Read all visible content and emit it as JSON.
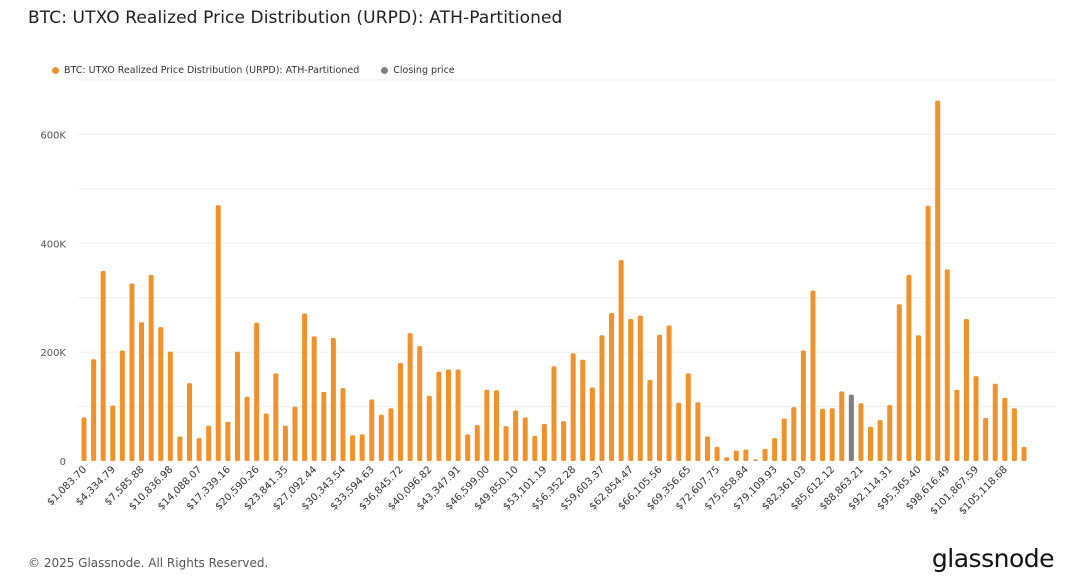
{
  "colors": {
    "series": "#F0922B",
    "closing": "#808080",
    "grid": "#eeeeee"
  },
  "chart_data": {
    "type": "bar",
    "title": "BTC: UTXO Realized Price Distribution (URPD): ATH-Partitioned",
    "legend": [
      "BTC: UTXO Realized Price Distribution (URPD): ATH-Partitioned",
      "Closing price"
    ],
    "legend_position": "top-left",
    "ylim": [
      0,
      700000
    ],
    "yticks": [
      0,
      200000,
      400000,
      600000
    ],
    "ytick_labels": [
      "0",
      "200K",
      "400K",
      "600K"
    ],
    "xtick_labels": [
      "$1,083.70",
      "$4,334.79",
      "$7,585.88",
      "$10,836.98",
      "$14,088.07",
      "$17,339.16",
      "$20,590.26",
      "$23,841.35",
      "$27,092.44",
      "$30,343.54",
      "$33,594.63",
      "$36,845.72",
      "$40,096.82",
      "$43,347.91",
      "$46,599.00",
      "$49,850.10",
      "$53,101.19",
      "$56,352.28",
      "$59,603.37",
      "$62,854.47",
      "$66,105.56",
      "$69,356.65",
      "$72,607.75",
      "$75,858.84",
      "$79,109.93",
      "$82,361.03",
      "$85,612.12",
      "$88,863.21",
      "$92,114.31",
      "$95,365.40",
      "$98,616.49",
      "$101,867.59",
      "$105,118.68"
    ],
    "values": [
      80000,
      187000,
      349000,
      102000,
      203000,
      326000,
      255000,
      342000,
      246000,
      201000,
      45000,
      143000,
      42000,
      65000,
      470000,
      72000,
      201000,
      118000,
      254000,
      87000,
      161000,
      65000,
      100000,
      271000,
      229000,
      127000,
      226000,
      134000,
      47000,
      49000,
      113000,
      85000,
      97000,
      180000,
      235000,
      211000,
      120000,
      164000,
      168000,
      168000,
      49000,
      66000,
      131000,
      130000,
      64000,
      93000,
      80000,
      46000,
      68000,
      174000,
      73000,
      198000,
      186000,
      135000,
      231000,
      272000,
      369000,
      261000,
      267000,
      149000,
      232000,
      249000,
      107000,
      161000,
      108000,
      45000,
      26000,
      7000,
      19000,
      21000,
      3000,
      22000,
      42000,
      78000,
      99000,
      203000,
      313000,
      96000,
      97000,
      128000,
      122000,
      106000,
      63000,
      75000,
      103000,
      288000,
      342000,
      231000,
      469000,
      662000,
      352000,
      131000,
      261000,
      156000,
      79000,
      142000,
      116000,
      97000,
      26000
    ],
    "closing_price_index": 80
  },
  "footer": {
    "copyright": "© 2025 Glassnode. All Rights Reserved.",
    "logo": "glassnode"
  }
}
